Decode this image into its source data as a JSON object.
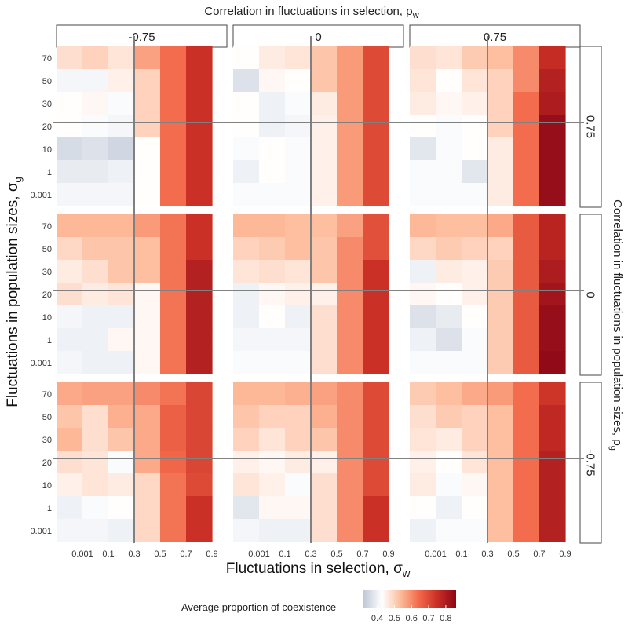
{
  "chart_data": {
    "type": "heatmap",
    "top_title": "Correlation in fluctuations in selection, ρ",
    "top_title_sub": "w",
    "right_title": "Correlation in fluctuations in population sizes, ρ",
    "right_title_sub": "g",
    "xlabel": "Fluctuations in selection, σ",
    "xlabel_sub": "w",
    "ylabel": "Fluctuations in population sizes, σ",
    "ylabel_sub": "g",
    "x_ticks": [
      "0.001",
      "0.1",
      "0.3",
      "0.5",
      "0.7",
      "0.9"
    ],
    "y_ticks": [
      "70",
      "50",
      "30",
      "20",
      "10",
      "1",
      "0.001"
    ],
    "col_strips": [
      "-0.75",
      "0",
      "0.75"
    ],
    "row_strips": [
      "0.75",
      "0",
      "-0.75"
    ],
    "legend": {
      "title": "Average proportion of  coexistence",
      "ticks": [
        "0.4",
        "0.5",
        "0.6",
        "0.7",
        "0.8"
      ],
      "tick_values": [
        0.4,
        0.5,
        0.6,
        0.7,
        0.8
      ],
      "range": [
        0.32,
        0.86
      ],
      "colors": [
        "#bec8d8",
        "#ffffff",
        "#fdbb9a",
        "#f2694a",
        "#c92f25",
        "#8b0617"
      ]
    },
    "panels": [
      {
        "row": "0.75",
        "col": "-0.75",
        "values": [
          [
            0.48,
            0.5,
            0.47,
            0.57,
            0.64,
            0.75
          ],
          [
            0.41,
            0.41,
            0.45,
            0.5,
            0.64,
            0.75
          ],
          [
            0.43,
            0.44,
            0.42,
            0.5,
            0.64,
            0.75
          ],
          [
            0.43,
            0.42,
            0.41,
            0.5,
            0.64,
            0.75
          ],
          [
            0.36,
            0.37,
            0.35,
            0.43,
            0.64,
            0.75
          ],
          [
            0.39,
            0.39,
            0.4,
            0.43,
            0.64,
            0.75
          ],
          [
            0.41,
            0.41,
            0.41,
            0.43,
            0.64,
            0.75
          ]
        ]
      },
      {
        "row": "0.75",
        "col": "0",
        "values": [
          [
            0.43,
            0.46,
            0.47,
            0.52,
            0.58,
            0.7
          ],
          [
            0.37,
            0.44,
            0.43,
            0.52,
            0.58,
            0.7
          ],
          [
            0.43,
            0.4,
            0.42,
            0.46,
            0.58,
            0.7
          ],
          [
            0.43,
            0.4,
            0.41,
            0.45,
            0.58,
            0.7
          ],
          [
            0.42,
            0.43,
            0.42,
            0.45,
            0.58,
            0.7
          ],
          [
            0.4,
            0.43,
            0.42,
            0.45,
            0.58,
            0.7
          ],
          [
            0.42,
            0.42,
            0.42,
            0.45,
            0.58,
            0.7
          ]
        ]
      },
      {
        "row": "0.75",
        "col": "0.75",
        "values": [
          [
            0.48,
            0.47,
            0.51,
            0.53,
            0.6,
            0.76
          ],
          [
            0.47,
            0.43,
            0.47,
            0.5,
            0.6,
            0.79
          ],
          [
            0.46,
            0.44,
            0.45,
            0.5,
            0.64,
            0.8
          ],
          [
            0.43,
            0.42,
            0.43,
            0.5,
            0.64,
            0.84
          ],
          [
            0.38,
            0.42,
            0.43,
            0.46,
            0.64,
            0.84
          ],
          [
            0.42,
            0.42,
            0.38,
            0.46,
            0.64,
            0.84
          ],
          [
            0.42,
            0.42,
            0.42,
            0.46,
            0.64,
            0.84
          ]
        ]
      },
      {
        "row": "0",
        "col": "-0.75",
        "values": [
          [
            0.54,
            0.54,
            0.54,
            0.58,
            0.63,
            0.75
          ],
          [
            0.49,
            0.52,
            0.52,
            0.53,
            0.63,
            0.75
          ],
          [
            0.46,
            0.48,
            0.52,
            0.53,
            0.63,
            0.79
          ],
          [
            0.48,
            0.46,
            0.47,
            0.44,
            0.63,
            0.79
          ],
          [
            0.41,
            0.4,
            0.4,
            0.44,
            0.63,
            0.79
          ],
          [
            0.4,
            0.4,
            0.44,
            0.44,
            0.63,
            0.79
          ],
          [
            0.41,
            0.4,
            0.4,
            0.44,
            0.63,
            0.79
          ]
        ]
      },
      {
        "row": "0",
        "col": "0",
        "values": [
          [
            0.54,
            0.54,
            0.53,
            0.53,
            0.57,
            0.69
          ],
          [
            0.5,
            0.51,
            0.53,
            0.52,
            0.6,
            0.69
          ],
          [
            0.47,
            0.48,
            0.47,
            0.52,
            0.6,
            0.75
          ],
          [
            0.4,
            0.44,
            0.45,
            0.45,
            0.6,
            0.75
          ],
          [
            0.4,
            0.43,
            0.4,
            0.48,
            0.6,
            0.75
          ],
          [
            0.41,
            0.41,
            0.41,
            0.48,
            0.6,
            0.75
          ],
          [
            0.42,
            0.42,
            0.42,
            0.48,
            0.6,
            0.75
          ]
        ]
      },
      {
        "row": "0",
        "col": "0.75",
        "values": [
          [
            0.54,
            0.53,
            0.53,
            0.56,
            0.67,
            0.78
          ],
          [
            0.49,
            0.51,
            0.5,
            0.5,
            0.67,
            0.78
          ],
          [
            0.4,
            0.46,
            0.45,
            0.51,
            0.67,
            0.8
          ],
          [
            0.44,
            0.43,
            0.45,
            0.51,
            0.67,
            0.82
          ],
          [
            0.37,
            0.39,
            0.43,
            0.51,
            0.67,
            0.84
          ],
          [
            0.4,
            0.37,
            0.42,
            0.51,
            0.67,
            0.84
          ],
          [
            0.42,
            0.42,
            0.42,
            0.51,
            0.67,
            0.85
          ]
        ]
      },
      {
        "row": "-0.75",
        "col": "-0.75",
        "values": [
          [
            0.56,
            0.57,
            0.57,
            0.6,
            0.63,
            0.71
          ],
          [
            0.52,
            0.48,
            0.55,
            0.56,
            0.66,
            0.71
          ],
          [
            0.54,
            0.48,
            0.52,
            0.56,
            0.66,
            0.71
          ],
          [
            0.48,
            0.47,
            0.42,
            0.56,
            0.65,
            0.71
          ],
          [
            0.45,
            0.47,
            0.46,
            0.49,
            0.63,
            0.7
          ],
          [
            0.4,
            0.42,
            0.43,
            0.49,
            0.63,
            0.75
          ],
          [
            0.41,
            0.41,
            0.4,
            0.49,
            0.63,
            0.75
          ]
        ]
      },
      {
        "row": "-0.75",
        "col": "0",
        "values": [
          [
            0.54,
            0.54,
            0.55,
            0.57,
            0.6,
            0.7
          ],
          [
            0.52,
            0.5,
            0.5,
            0.55,
            0.6,
            0.7
          ],
          [
            0.5,
            0.47,
            0.5,
            0.52,
            0.6,
            0.7
          ],
          [
            0.45,
            0.44,
            0.46,
            0.45,
            0.6,
            0.7
          ],
          [
            0.47,
            0.45,
            0.42,
            0.48,
            0.6,
            0.7
          ],
          [
            0.38,
            0.44,
            0.44,
            0.48,
            0.6,
            0.75
          ],
          [
            0.41,
            0.4,
            0.4,
            0.48,
            0.6,
            0.75
          ]
        ]
      },
      {
        "row": "-0.75",
        "col": "0.75",
        "values": [
          [
            0.51,
            0.53,
            0.56,
            0.58,
            0.64,
            0.74
          ],
          [
            0.48,
            0.51,
            0.5,
            0.53,
            0.64,
            0.77
          ],
          [
            0.47,
            0.46,
            0.5,
            0.53,
            0.64,
            0.77
          ],
          [
            0.45,
            0.43,
            0.47,
            0.53,
            0.64,
            0.79
          ],
          [
            0.46,
            0.42,
            0.44,
            0.53,
            0.64,
            0.79
          ],
          [
            0.43,
            0.4,
            0.43,
            0.53,
            0.64,
            0.79
          ],
          [
            0.4,
            0.42,
            0.42,
            0.53,
            0.64,
            0.79
          ]
        ]
      }
    ]
  }
}
